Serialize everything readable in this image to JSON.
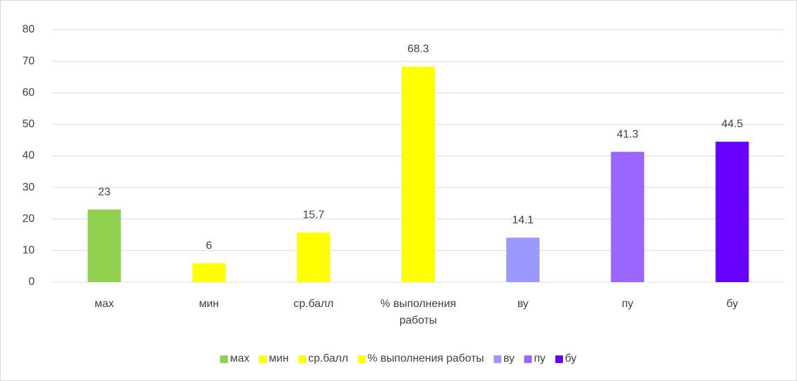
{
  "chart_data": {
    "type": "bar",
    "categories": [
      "мах",
      "мин",
      "ср.балл",
      "% выполнения работы",
      "ву",
      "пу",
      "бу"
    ],
    "values": [
      23,
      6,
      15.7,
      68.3,
      14.1,
      41.3,
      44.5
    ],
    "colors": [
      "#92d050",
      "#ffff00",
      "#ffff00",
      "#ffff00",
      "#9999ff",
      "#9966ff",
      "#6600ff"
    ],
    "ylim": [
      0,
      80
    ],
    "yticks": [
      0,
      10,
      20,
      30,
      40,
      50,
      60,
      70,
      80
    ],
    "grid": true,
    "legend": "bottom"
  }
}
